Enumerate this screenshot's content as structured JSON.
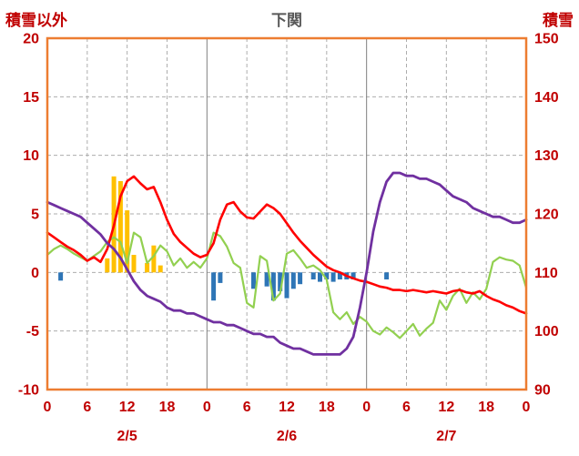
{
  "chart_data": {
    "type": "combo-bar-line",
    "title": "下関",
    "hours_total": 72,
    "x_tick_interval": 6,
    "x_tick_labels": [
      "0",
      "6",
      "12",
      "18",
      "0",
      "6",
      "12",
      "18",
      "0",
      "6",
      "12",
      "18",
      "0"
    ],
    "date_labels": [
      {
        "label": "2/5",
        "hour": 12
      },
      {
        "label": "2/6",
        "hour": 36
      },
      {
        "label": "2/7",
        "hour": 60
      }
    ],
    "left_axis": {
      "title": "積雪以外",
      "min": -10,
      "max": 20,
      "ticks": [
        20,
        15,
        10,
        5,
        0,
        -5,
        -10
      ]
    },
    "right_axis": {
      "title": "積雪",
      "min": 90,
      "max": 150,
      "ticks": [
        150,
        140,
        130,
        120,
        110,
        100,
        90
      ]
    },
    "grid": "on",
    "legend": "none",
    "colors": {
      "axis_label": "#C00000",
      "title": "#595959",
      "grid": "#ADADAD",
      "day_grid": "#808080",
      "border": "#ED7D31",
      "orange_bars": "#FFC000",
      "blue_bars": "#2E75B6",
      "green_line": "#92D050",
      "red_line": "#FF0000",
      "purple_line": "#7030A0"
    },
    "series": [
      {
        "name": "orange-bars",
        "type": "bar",
        "axis": "left",
        "color": "#FFC000",
        "data": [
          {
            "h": 9,
            "v": 1.2
          },
          {
            "h": 10,
            "v": 8.2
          },
          {
            "h": 11,
            "v": 7.8
          },
          {
            "h": 12,
            "v": 5.3
          },
          {
            "h": 13,
            "v": 1.5
          },
          {
            "h": 15,
            "v": 0.8
          },
          {
            "h": 16,
            "v": 2.3
          },
          {
            "h": 17,
            "v": 0.6
          }
        ]
      },
      {
        "name": "blue-bars",
        "type": "bar",
        "axis": "left",
        "color": "#2E75B6",
        "data": [
          {
            "h": 2,
            "v": -0.7
          },
          {
            "h": 25,
            "v": -2.4
          },
          {
            "h": 26,
            "v": -0.9
          },
          {
            "h": 31,
            "v": -1.4
          },
          {
            "h": 33,
            "v": -1.2
          },
          {
            "h": 34,
            "v": -2.4
          },
          {
            "h": 35,
            "v": -1.6
          },
          {
            "h": 36,
            "v": -2.2
          },
          {
            "h": 37,
            "v": -1.4
          },
          {
            "h": 38,
            "v": -1.0
          },
          {
            "h": 40,
            "v": -0.6
          },
          {
            "h": 41,
            "v": -0.8
          },
          {
            "h": 42,
            "v": -0.6
          },
          {
            "h": 43,
            "v": -0.8
          },
          {
            "h": 44,
            "v": -0.6
          },
          {
            "h": 45,
            "v": -0.6
          },
          {
            "h": 46,
            "v": -0.6
          },
          {
            "h": 51,
            "v": -0.6
          }
        ]
      },
      {
        "name": "green-series",
        "type": "line",
        "axis": "left",
        "color": "#92D050",
        "width": 2.2,
        "values": [
          1.5,
          2.0,
          2.3,
          2.0,
          1.6,
          1.3,
          1.0,
          1.4,
          1.8,
          2.6,
          3.0,
          2.6,
          0.8,
          3.4,
          3.0,
          0.8,
          1.4,
          2.3,
          1.8,
          0.6,
          1.2,
          0.4,
          0.9,
          0.4,
          1.2,
          3.4,
          3.1,
          2.2,
          0.8,
          0.4,
          -2.6,
          -3.0,
          1.4,
          1.0,
          -2.4,
          -1.8,
          1.6,
          1.9,
          1.2,
          0.4,
          0.6,
          0.2,
          -0.6,
          -3.4,
          -4.0,
          -3.4,
          -4.4,
          -3.8,
          -4.2,
          -5.0,
          -5.3,
          -4.7,
          -5.1,
          -5.6,
          -5.0,
          -4.4,
          -5.4,
          -4.8,
          -4.3,
          -2.4,
          -3.2,
          -2.0,
          -1.4,
          -2.6,
          -1.7,
          -2.3,
          -1.4,
          0.9,
          1.3,
          1.1,
          1.0,
          0.6,
          -1.3
        ]
      },
      {
        "name": "red-series",
        "type": "line",
        "axis": "left",
        "color": "#FF0000",
        "width": 2.6,
        "values": [
          3.4,
          3.0,
          2.6,
          2.2,
          1.9,
          1.5,
          1.0,
          1.3,
          0.9,
          2.0,
          4.0,
          6.5,
          7.8,
          8.2,
          7.6,
          7.1,
          7.3,
          6.0,
          4.5,
          3.3,
          2.6,
          2.1,
          1.6,
          1.3,
          1.5,
          2.5,
          4.5,
          5.8,
          6.0,
          5.2,
          4.7,
          4.6,
          5.2,
          5.8,
          5.5,
          5.0,
          4.2,
          3.4,
          2.7,
          2.1,
          1.5,
          1.0,
          0.5,
          0.2,
          0.0,
          -0.3,
          -0.5,
          -0.7,
          -0.8,
          -1.0,
          -1.2,
          -1.3,
          -1.5,
          -1.5,
          -1.6,
          -1.5,
          -1.6,
          -1.7,
          -1.6,
          -1.7,
          -1.8,
          -1.6,
          -1.5,
          -1.7,
          -1.8,
          -1.6,
          -2.0,
          -2.3,
          -2.5,
          -2.8,
          -3.0,
          -3.3,
          -3.5
        ]
      },
      {
        "name": "snow-depth",
        "type": "line",
        "axis": "right",
        "color": "#7030A0",
        "width": 2.8,
        "values": [
          122,
          121.5,
          121,
          120.5,
          120,
          119.5,
          118.5,
          117.5,
          116.5,
          115,
          114,
          112.5,
          110.5,
          108.5,
          107,
          106,
          105.5,
          105,
          104,
          103.5,
          103.5,
          103,
          103,
          102.5,
          102,
          101.5,
          101.5,
          101,
          101,
          100.5,
          100,
          99.5,
          99.5,
          99,
          99,
          98,
          97.5,
          97,
          97,
          96.5,
          96,
          96,
          96,
          96,
          96,
          97,
          99,
          104,
          110,
          117,
          122,
          125.5,
          127,
          127,
          126.5,
          126.5,
          126,
          126,
          125.5,
          125,
          124,
          123,
          122.5,
          122,
          121,
          120.5,
          120,
          119.5,
          119.5,
          119,
          118.5,
          118.5,
          119
        ]
      }
    ]
  }
}
